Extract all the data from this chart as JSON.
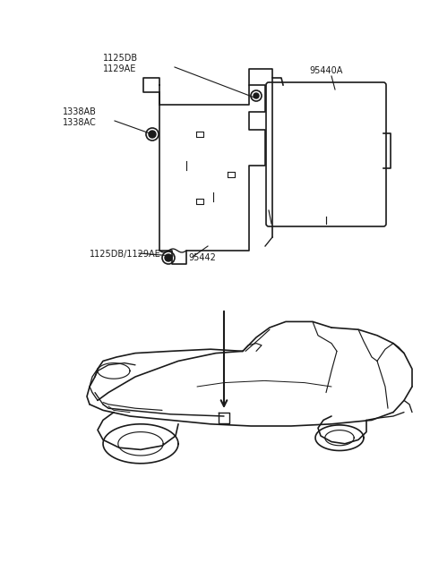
{
  "bg_color": "#ffffff",
  "line_color": "#1a1a1a",
  "label_color": "#1a1a1a",
  "figsize": [
    4.8,
    6.57
  ],
  "dpi": 100,
  "top_labels": {
    "lbl1_line1": "1125DB",
    "lbl1_line2": "1129AE",
    "lbl2_line1": "1338AB",
    "lbl2_line2": "1338AC",
    "lbl3": "95440A",
    "lbl4": "1125DB/1129AE",
    "lbl5": "95442"
  },
  "fontsize": 7.0
}
